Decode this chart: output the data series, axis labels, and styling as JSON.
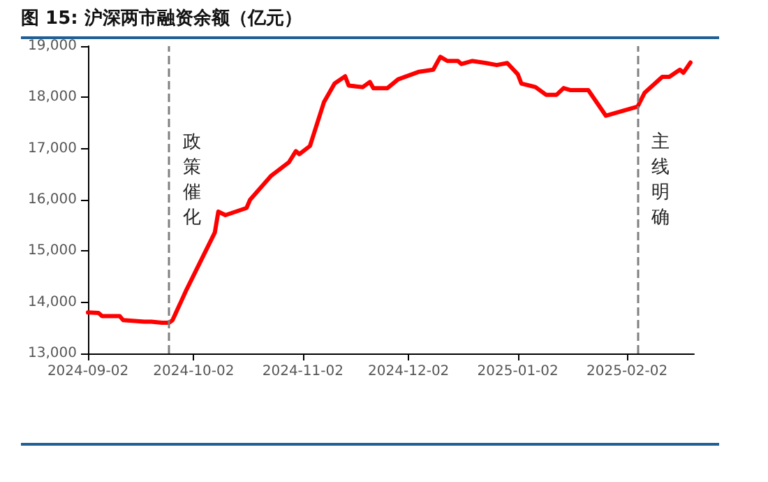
{
  "chart_data": {
    "type": "line",
    "title": "图 15: 沪深两市融资余额（亿元）",
    "x": [
      "2024-09-02",
      "2024-09-05",
      "2024-09-06",
      "2024-09-11",
      "2024-09-12",
      "2024-09-18",
      "2024-09-20",
      "2024-09-23",
      "2024-09-25",
      "2024-09-26",
      "2024-09-30",
      "2024-10-08",
      "2024-10-09",
      "2024-10-11",
      "2024-10-17",
      "2024-10-18",
      "2024-10-24",
      "2024-10-29",
      "2024-10-31",
      "2024-11-01",
      "2024-11-04",
      "2024-11-08",
      "2024-11-11",
      "2024-11-14",
      "2024-11-15",
      "2024-11-19",
      "2024-11-21",
      "2024-11-22",
      "2024-11-26",
      "2024-11-29",
      "2024-12-05",
      "2024-12-09",
      "2024-12-11",
      "2024-12-13",
      "2024-12-16",
      "2024-12-17",
      "2024-12-20",
      "2024-12-24",
      "2024-12-27",
      "2024-12-30",
      "2025-01-02",
      "2025-01-03",
      "2025-01-07",
      "2025-01-10",
      "2025-01-13",
      "2025-01-15",
      "2025-01-17",
      "2025-01-22",
      "2025-01-27",
      "2025-02-05",
      "2025-02-07",
      "2025-02-12",
      "2025-02-14",
      "2025-02-17",
      "2025-02-18",
      "2025-02-20"
    ],
    "series": [
      {
        "color": "#ff0000",
        "values": [
          13800,
          13790,
          13730,
          13730,
          13650,
          13620,
          13620,
          13600,
          13600,
          13650,
          14250,
          15360,
          15770,
          15700,
          15840,
          16000,
          16470,
          16730,
          16950,
          16890,
          17050,
          17910,
          18270,
          18410,
          18230,
          18200,
          18300,
          18180,
          18180,
          18350,
          18500,
          18540,
          18790,
          18710,
          18710,
          18650,
          18710,
          18670,
          18630,
          18670,
          18450,
          18270,
          18200,
          18050,
          18050,
          18180,
          18140,
          18140,
          17640,
          17820,
          18090,
          18400,
          18400,
          18540,
          18480,
          18680
        ]
      }
    ],
    "xlim": [
      "2024-09-02",
      "2025-02-21"
    ],
    "xticks": [
      "2024-09-02",
      "2024-10-02",
      "2024-11-02",
      "2024-12-02",
      "2025-01-02",
      "2025-02-02"
    ],
    "ylim": [
      13000,
      19000
    ],
    "yticks": [
      {
        "value": 13000,
        "label": "13,000"
      },
      {
        "value": 14000,
        "label": "14,000"
      },
      {
        "value": 15000,
        "label": "15,000"
      },
      {
        "value": 16000,
        "label": "16,000"
      },
      {
        "value": 17000,
        "label": "17,000"
      },
      {
        "value": 18000,
        "label": "18,000"
      },
      {
        "value": 19000,
        "label": "19,000"
      }
    ],
    "grid": false,
    "marker": "none",
    "line_style": "solid",
    "ref_lines": [
      {
        "axis": "x",
        "value": "2024-09-25",
        "label": "政策催化",
        "color": "#808080",
        "line_style": "dashed"
      },
      {
        "axis": "x",
        "value": "2025-02-05",
        "label": "主线明确",
        "color": "#808080",
        "line_style": "dashed"
      }
    ]
  }
}
